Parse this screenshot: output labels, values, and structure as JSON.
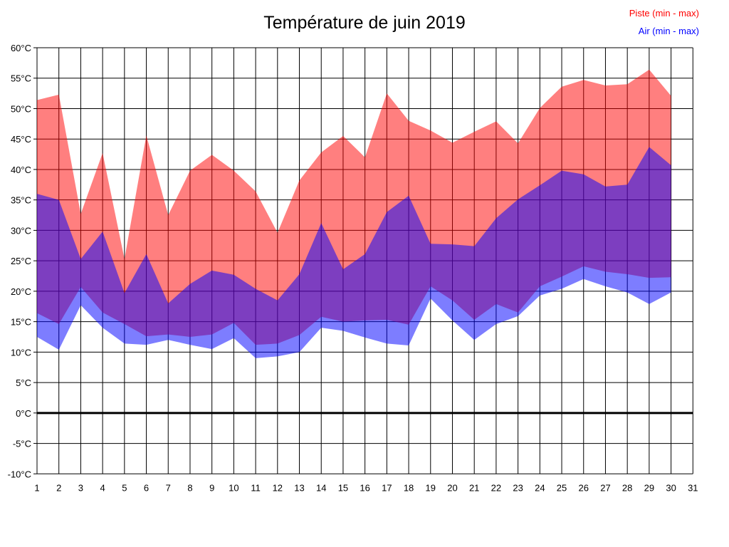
{
  "chart_data": {
    "type": "area",
    "title": "Température de juin 2019",
    "legend_position": "top-right",
    "grid": true,
    "background_color": "#FFFFFF",
    "grid_color": "#000000",
    "zero_line": {
      "value": 0,
      "color": "#000000"
    },
    "x_axis": {
      "min": 1,
      "max": 31,
      "tick_labels": [
        "1",
        "2",
        "3",
        "4",
        "5",
        "6",
        "7",
        "8",
        "9",
        "10",
        "11",
        "12",
        "13",
        "14",
        "15",
        "16",
        "17",
        "18",
        "19",
        "20",
        "21",
        "22",
        "23",
        "24",
        "25",
        "26",
        "27",
        "28",
        "29",
        "30",
        "31"
      ]
    },
    "y_axis": {
      "min": -10,
      "max": 60,
      "step": 5,
      "unit": "°C",
      "tick_labels": [
        "-10°C",
        "-5°C",
        "0°C",
        "5°C",
        "10°C",
        "15°C",
        "20°C",
        "25°C",
        "30°C",
        "35°C",
        "40°C",
        "45°C",
        "50°C",
        "55°C",
        "60°C"
      ]
    },
    "days": [
      1,
      2,
      3,
      4,
      5,
      6,
      7,
      8,
      9,
      10,
      11,
      12,
      13,
      14,
      15,
      16,
      17,
      18,
      19,
      20,
      21,
      22,
      23,
      24,
      25,
      26,
      27,
      28,
      29,
      30
    ],
    "series": [
      {
        "name": "Piste (min - max)",
        "color": "#FF0000",
        "opacity": 0.5,
        "max": [
          51.4,
          52.3,
          32.7,
          42.7,
          25.3,
          45.6,
          32.5,
          39.8,
          42.4,
          39.8,
          36.4,
          29.6,
          38.2,
          42.8,
          45.5,
          42.0,
          52.5,
          48.0,
          46.4,
          44.4,
          46.2,
          47.9,
          44.3,
          50.1,
          53.6,
          54.7,
          53.8,
          54.0,
          56.4,
          52.1
        ],
        "min": [
          16.4,
          14.6,
          20.7,
          16.5,
          14.6,
          12.6,
          12.9,
          12.5,
          12.9,
          14.8,
          11.2,
          11.4,
          12.8,
          15.8,
          15.0,
          15.2,
          15.3,
          14.5,
          20.8,
          18.5,
          15.3,
          17.9,
          16.5,
          20.8,
          22.4,
          24.1,
          23.2,
          22.8,
          22.2,
          22.3
        ]
      },
      {
        "name": "Air (min - max)",
        "color": "#0000FF",
        "opacity": 0.51,
        "max": [
          36.0,
          35.0,
          25.3,
          29.8,
          19.7,
          26.1,
          18.0,
          21.2,
          23.4,
          22.7,
          20.4,
          18.5,
          22.8,
          31.2,
          23.6,
          26.1,
          33.0,
          35.7,
          27.8,
          27.7,
          27.4,
          32.0,
          35.1,
          37.4,
          39.8,
          39.2,
          37.2,
          37.5,
          43.7,
          40.7
        ],
        "min": [
          12.5,
          10.4,
          17.7,
          14.0,
          11.4,
          11.2,
          12.0,
          11.2,
          10.5,
          12.3,
          9.0,
          9.3,
          10.0,
          14.0,
          13.5,
          12.4,
          11.4,
          11.1,
          18.8,
          15.2,
          12.0,
          14.6,
          15.9,
          19.3,
          20.4,
          22.0,
          20.8,
          19.8,
          17.9,
          19.8
        ]
      }
    ]
  }
}
